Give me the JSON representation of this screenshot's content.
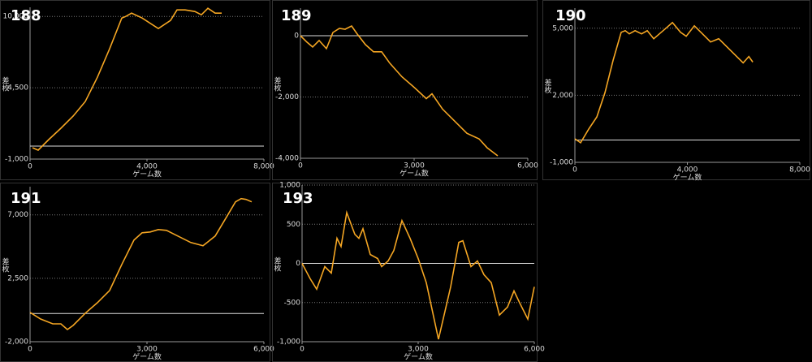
{
  "chart_data": [
    {
      "type": "line",
      "title": "188",
      "xlabel": "ゲーム数",
      "ylabel": "差枚",
      "color": "#f5a623",
      "grid": true,
      "x": [
        83,
        278,
        639,
        1056,
        1472,
        1889,
        2306,
        2722,
        3139,
        3278,
        3472,
        3833,
        4389,
        4806,
        5028,
        5306,
        5639,
        5861,
        6083,
        6333,
        6556
      ],
      "values": [
        -125,
        -312,
        500,
        1375,
        2312,
        3437,
        5312,
        7500,
        9875,
        10000,
        10250,
        9875,
        9062,
        9687,
        10500,
        10500,
        10375,
        10125,
        10625,
        10250,
        10250
      ],
      "xlim": [
        0,
        8000
      ],
      "xticks": [
        0,
        {
          "value": 4000,
          "label": "4,000"
        },
        {
          "value": 8000,
          "label": "8,000"
        }
      ],
      "ylim": [
        -1000,
        10700
      ],
      "yticks": [
        {
          "value": -1000,
          "label": "-1,000"
        },
        {
          "value": 4500,
          "label": "4,500"
        },
        {
          "value": 10000,
          "label": "10,000"
        }
      ]
    },
    {
      "type": "line",
      "title": "189",
      "xlabel": "ゲーム数",
      "ylabel": "差枚",
      "color": "#f5a623",
      "grid": true,
      "x": [
        0,
        171,
        321,
        493,
        686,
        857,
        1029,
        1179,
        1350,
        1500,
        1714,
        1929,
        2143,
        2357,
        2679,
        3000,
        3321,
        3471,
        3750,
        4071,
        4393,
        4714,
        4929,
        5207
      ],
      "values": [
        0,
        -210,
        -368,
        -158,
        -421,
        105,
        237,
        211,
        316,
        53,
        -289,
        -526,
        -526,
        -895,
        -1342,
        -1684,
        -2053,
        -1895,
        -2395,
        -2789,
        -3184,
        -3368,
        -3658,
        -3921
      ],
      "xlim": [
        0,
        6000
      ],
      "xticks": [
        0,
        {
          "value": 3000,
          "label": "3,000"
        },
        {
          "value": 6000,
          "label": "6,000"
        }
      ],
      "ylim": [
        -4000,
        900
      ],
      "yticks": [
        {
          "value": -4000,
          "label": "-4,000"
        },
        {
          "value": -2000,
          "label": "-2,000"
        },
        0
      ]
    },
    {
      "type": "line",
      "title": "190",
      "xlabel": "ゲーム数",
      "ylabel": "差枚",
      "color": "#f5a623",
      "grid": true,
      "x": [
        0,
        202,
        491,
        780,
        1069,
        1358,
        1647,
        1792,
        1936,
        2139,
        2370,
        2572,
        2803,
        3006,
        3237,
        3468,
        3757,
        3960,
        4249,
        4538,
        4827,
        5116,
        5405,
        5694,
        5983,
        6185,
        6329
      ],
      "values": [
        54,
        -126,
        487,
        1029,
        2112,
        3556,
        4819,
        4892,
        4747,
        4892,
        4747,
        4892,
        4531,
        4747,
        5000,
        5253,
        4819,
        4639,
        5108,
        4747,
        4386,
        4531,
        4170,
        3809,
        3448,
        3736,
        3484
      ],
      "xlim": [
        0,
        8000
      ],
      "xticks": [
        0,
        {
          "value": 4000,
          "label": "4,000"
        },
        {
          "value": 8000,
          "label": "8,000"
        }
      ],
      "ylim": [
        -1000,
        5900
      ],
      "yticks": [
        {
          "value": -1000,
          "label": "-1,000"
        },
        {
          "value": 2000,
          "label": "2,000"
        },
        {
          "value": 5000,
          "label": "5,000"
        }
      ]
    },
    {
      "type": "line",
      "title": "191",
      "xlabel": "ゲーム数",
      "ylabel": "差枚",
      "color": "#f5a623",
      "grid": true,
      "x": [
        0,
        271,
        583,
        792,
        958,
        1104,
        1417,
        1729,
        2042,
        2354,
        2667,
        2875,
        3083,
        3292,
        3500,
        3708,
        4125,
        4438,
        4750,
        5063,
        5271,
        5417,
        5542,
        5688
      ],
      "values": [
        77,
        -385,
        -731,
        -731,
        -1135,
        -846,
        19,
        769,
        1635,
        3481,
        5212,
        5731,
        5788,
        5962,
        5904,
        5615,
        5038,
        4808,
        5500,
        6942,
        7923,
        8154,
        8096,
        7923
      ],
      "xlim": [
        0,
        6000
      ],
      "xticks": [
        0,
        {
          "value": 3000,
          "label": "3,000"
        },
        {
          "value": 6000,
          "label": "6,000"
        }
      ],
      "ylim": [
        -2000,
        9000
      ],
      "yticks": [
        {
          "value": -2000,
          "label": "-2,000"
        },
        {
          "value": 2500,
          "label": "2,500"
        },
        {
          "value": 7000,
          "label": "7,000"
        }
      ]
    },
    {
      "type": "line",
      "title": "193",
      "xlabel": "ゲーム数",
      "ylabel": "差枚",
      "color": "#f5a623",
      "grid": true,
      "x": [
        0,
        210,
        378,
        587,
        755,
        902,
        1007,
        1154,
        1364,
        1469,
        1573,
        1762,
        1951,
        2056,
        2224,
        2370,
        2580,
        2790,
        3000,
        3210,
        3524,
        3839,
        4049,
        4154,
        4364,
        4531,
        4699,
        4888,
        5098,
        5308,
        5476,
        5622,
        5832,
        6000
      ],
      "values": [
        0,
        -196,
        -330,
        -41,
        -124,
        320,
        216,
        649,
        371,
        320,
        443,
        113,
        62,
        -41,
        31,
        165,
        546,
        320,
        62,
        -247,
        -969,
        -299,
        268,
        289,
        -41,
        31,
        -144,
        -247,
        -660,
        -557,
        -351,
        -505,
        -711,
        -299
      ],
      "xlim": [
        0,
        6000
      ],
      "xticks": [
        0,
        {
          "value": 3000,
          "label": "3,000"
        },
        {
          "value": 6000,
          "label": "6,000"
        }
      ],
      "ylim": [
        -1000,
        1000
      ],
      "yticks": [
        {
          "value": -1000,
          "label": "-1,000"
        },
        -500,
        0,
        500,
        {
          "value": 1000,
          "label": "1,000"
        }
      ]
    }
  ]
}
